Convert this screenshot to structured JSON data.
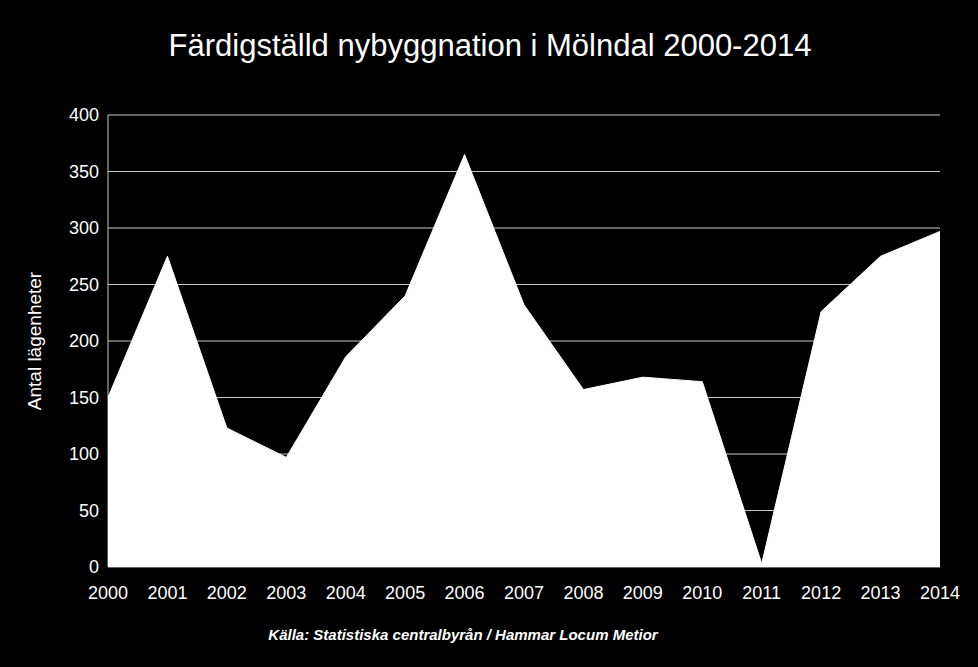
{
  "chart_data": {
    "type": "area",
    "title": "Färdigställd nybyggnation i Mölndal 2000-2014",
    "y_label": "Antal lägenheter",
    "source": "Källa: Statistiska centralbyrån / Hammar Locum Metior",
    "categories": [
      "2000",
      "2001",
      "2002",
      "2003",
      "2004",
      "2005",
      "2006",
      "2007",
      "2008",
      "2009",
      "2010",
      "2011",
      "2012",
      "2013",
      "2014"
    ],
    "values": [
      150,
      275,
      123,
      97,
      186,
      240,
      365,
      232,
      157,
      168,
      164,
      3,
      226,
      275,
      297
    ],
    "color": "#ffffff",
    "ylim": [
      0,
      400
    ],
    "yticks": [
      0,
      50,
      100,
      150,
      200,
      250,
      300,
      350,
      400
    ],
    "grid": true
  }
}
